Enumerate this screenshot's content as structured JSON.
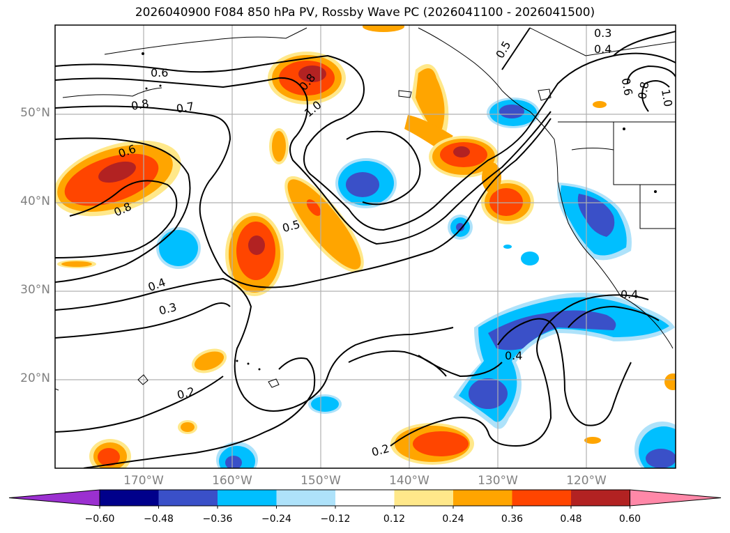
{
  "title": "2026040900 F084 850 hPa PV, Rossby Wave PC (2026041100 - 2026041500)",
  "lat_labels": [
    "50°N",
    "40°N",
    "30°N",
    "20°N"
  ],
  "lon_labels": [
    "170°W",
    "160°W",
    "150°W",
    "140°W",
    "130°W",
    "120°W"
  ],
  "colorbar": {
    "ticks": [
      "−0.60",
      "−0.48",
      "−0.36",
      "−0.24",
      "−0.12",
      "0.12",
      "0.24",
      "0.36",
      "0.48",
      "0.60"
    ],
    "colors": [
      "#9b30d0",
      "#00008b",
      "#3a50c8",
      "#00bfff",
      "#aee2fa",
      "#ffffff",
      "#ffe88a",
      "#ffa500",
      "#ff4500",
      "#b22222",
      "#ff88a8"
    ]
  },
  "contour_labels": [
    "0.3",
    "0.4",
    "0.5",
    "0.6",
    "0.7",
    "0.8",
    "0.8",
    "0.6",
    "0.8",
    "1.0",
    "0.5",
    "0.4",
    "0.3",
    "0.2",
    "0.2",
    "0.4",
    "0.4",
    "0.8",
    "1.0",
    "0.6"
  ]
}
